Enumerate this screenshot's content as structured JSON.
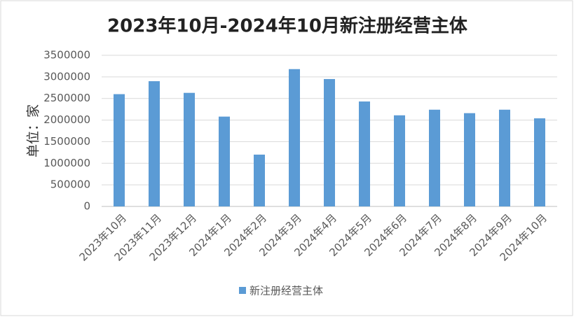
{
  "chart_data": {
    "type": "bar",
    "title": "2023年10月-2024年10月新注册经营主体",
    "y_label": "单位：家",
    "categories": [
      "2023年10月",
      "2023年11月",
      "2023年12月",
      "2024年1月",
      "2024年2月",
      "2024年3月",
      "2024年4月",
      "2024年5月",
      "2024年6月",
      "2024年7月",
      "2024年8月",
      "2024年9月",
      "2024年10月"
    ],
    "series": [
      {
        "name": "新注册经营主体",
        "color": "#5b9bd5",
        "values": [
          2600000,
          2900000,
          2630000,
          2080000,
          1200000,
          3180000,
          2950000,
          2430000,
          2110000,
          2240000,
          2160000,
          2240000,
          2040000
        ]
      }
    ],
    "ylim": [
      0,
      3500000
    ],
    "yticks": [
      0,
      500000,
      1000000,
      1500000,
      2000000,
      2500000,
      3000000,
      3500000
    ],
    "grid": true,
    "legend": "bottom"
  }
}
